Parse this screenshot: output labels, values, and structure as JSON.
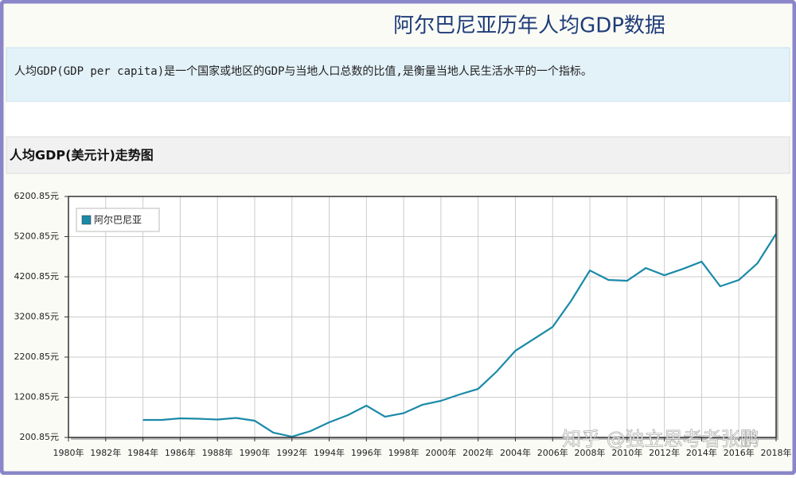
{
  "page": {
    "title": "阿尔巴尼亚历年人均GDP数据",
    "description": "人均GDP(GDP per capita)是一个国家或地区的GDP与当地人口总数的比值,是衡量当地人民生活水平的一个指标。",
    "section_title": "人均GDP(美元计)走势图",
    "watermark": "知乎 @独立思考者张鹏"
  },
  "chart_data": {
    "type": "line",
    "grid": true,
    "legend": "upper left",
    "x": [
      1984,
      1985,
      1986,
      1987,
      1988,
      1989,
      1990,
      1991,
      1992,
      1993,
      1994,
      1995,
      1996,
      1997,
      1998,
      1999,
      2000,
      2001,
      2002,
      2003,
      2004,
      2005,
      2006,
      2007,
      2008,
      2009,
      2010,
      2011,
      2012,
      2013,
      2014,
      2015,
      2016,
      2017,
      2018
    ],
    "series": [
      {
        "name": "阿尔巴尼亚",
        "color": "#1a8aa8",
        "values": [
          636,
          636,
          676,
          666,
          646,
          686,
          617,
          320,
          220,
          359,
          577,
          755,
          993,
          716,
          805,
          1013,
          1112,
          1270,
          1409,
          1844,
          2359,
          2656,
          2953,
          3607,
          4359,
          4121,
          4102,
          4418,
          4240,
          4398,
          4577,
          3963,
          4121,
          4537,
          5270
        ]
      }
    ],
    "xlim": [
      1980,
      2018
    ],
    "xticks": [
      {
        "value": 1980,
        "label": "1980年"
      },
      {
        "value": 1982,
        "label": "1982年"
      },
      {
        "value": 1984,
        "label": "1984年"
      },
      {
        "value": 1986,
        "label": "1986年"
      },
      {
        "value": 1988,
        "label": "1988年"
      },
      {
        "value": 1990,
        "label": "1990年"
      },
      {
        "value": 1992,
        "label": "1992年"
      },
      {
        "value": 1994,
        "label": "1994年"
      },
      {
        "value": 1996,
        "label": "1996年"
      },
      {
        "value": 1998,
        "label": "1998年"
      },
      {
        "value": 2000,
        "label": "2000年"
      },
      {
        "value": 2002,
        "label": "2002年"
      },
      {
        "value": 2004,
        "label": "2004年"
      },
      {
        "value": 2006,
        "label": "2006年"
      },
      {
        "value": 2008,
        "label": "2008年"
      },
      {
        "value": 2010,
        "label": "2010年"
      },
      {
        "value": 2012,
        "label": "2012年"
      },
      {
        "value": 2014,
        "label": "2014年"
      },
      {
        "value": 2016,
        "label": "2016年"
      },
      {
        "value": 2018,
        "label": "2018年"
      }
    ],
    "ylim": [
      200.85,
      6200.85
    ],
    "yticks": [
      {
        "value": 200.85,
        "label": "200.85元"
      },
      {
        "value": 1200.85,
        "label": "1200.85元"
      },
      {
        "value": 2200.85,
        "label": "2200.85元"
      },
      {
        "value": 3200.85,
        "label": "3200.85元"
      },
      {
        "value": 4200.85,
        "label": "4200.85元"
      },
      {
        "value": 5200.85,
        "label": "5200.85元"
      },
      {
        "value": 6200.85,
        "label": "6200.85元"
      }
    ]
  }
}
